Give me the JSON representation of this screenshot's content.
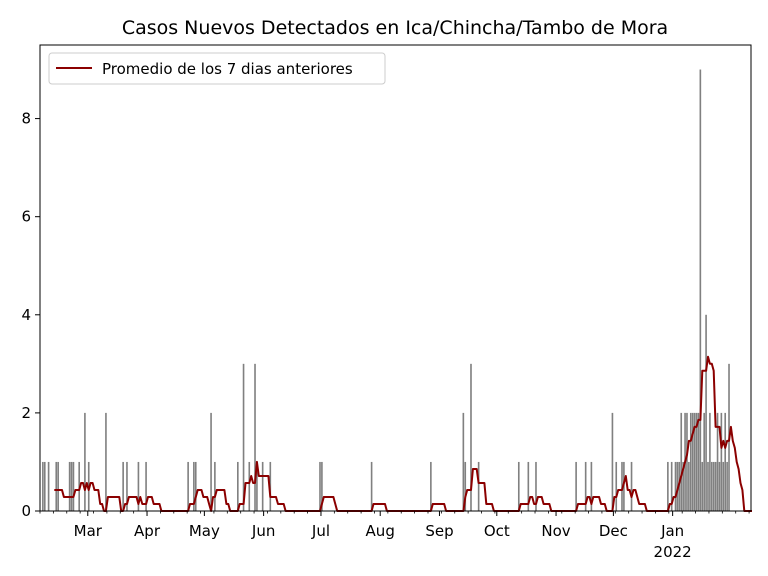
{
  "chart_data": {
    "type": "bar+line",
    "title": "Casos Nuevos Detectados en Ica/Chincha/Tambo de Mora",
    "xlabel": "",
    "ylabel": "",
    "x_start": "2021-02-04",
    "x_end": "2022-02-11",
    "ylim": [
      0,
      9.5
    ],
    "y_ticks": [
      0,
      2,
      4,
      6,
      8
    ],
    "x_ticks": [
      {
        "date": "2021-03-01",
        "label": "Mar",
        "sublabel": ""
      },
      {
        "date": "2021-04-01",
        "label": "Apr",
        "sublabel": ""
      },
      {
        "date": "2021-05-01",
        "label": "May",
        "sublabel": ""
      },
      {
        "date": "2021-06-01",
        "label": "Jun",
        "sublabel": ""
      },
      {
        "date": "2021-07-01",
        "label": "Jul",
        "sublabel": ""
      },
      {
        "date": "2021-08-01",
        "label": "Aug",
        "sublabel": ""
      },
      {
        "date": "2021-09-01",
        "label": "Sep",
        "sublabel": ""
      },
      {
        "date": "2021-10-01",
        "label": "Oct",
        "sublabel": ""
      },
      {
        "date": "2021-11-01",
        "label": "Nov",
        "sublabel": ""
      },
      {
        "date": "2021-12-01",
        "label": "Dec",
        "sublabel": ""
      },
      {
        "date": "2022-01-01",
        "label": "Jan",
        "sublabel": "2022"
      }
    ],
    "legend": {
      "position": "top-left",
      "entries": [
        "Promedio de los 7 dias anteriores"
      ]
    },
    "grid": false,
    "colors": {
      "bars": "#808080",
      "line": "#8b0000"
    },
    "daily_cases": [
      {
        "date": "2021-02-05",
        "value": 1
      },
      {
        "date": "2021-02-06",
        "value": 1
      },
      {
        "date": "2021-02-08",
        "value": 1
      },
      {
        "date": "2021-02-12",
        "value": 1
      },
      {
        "date": "2021-02-13",
        "value": 1
      },
      {
        "date": "2021-02-19",
        "value": 1
      },
      {
        "date": "2021-02-20",
        "value": 1
      },
      {
        "date": "2021-02-21",
        "value": 1
      },
      {
        "date": "2021-02-24",
        "value": 1
      },
      {
        "date": "2021-02-27",
        "value": 2
      },
      {
        "date": "2021-03-01",
        "value": 1
      },
      {
        "date": "2021-03-10",
        "value": 2
      },
      {
        "date": "2021-03-19",
        "value": 1
      },
      {
        "date": "2021-03-21",
        "value": 1
      },
      {
        "date": "2021-03-27",
        "value": 1
      },
      {
        "date": "2021-03-31",
        "value": 1
      },
      {
        "date": "2021-04-22",
        "value": 1
      },
      {
        "date": "2021-04-25",
        "value": 1
      },
      {
        "date": "2021-04-26",
        "value": 1
      },
      {
        "date": "2021-05-04",
        "value": 2
      },
      {
        "date": "2021-05-06",
        "value": 1
      },
      {
        "date": "2021-05-18",
        "value": 1
      },
      {
        "date": "2021-05-21",
        "value": 3
      },
      {
        "date": "2021-05-24",
        "value": 1
      },
      {
        "date": "2021-05-27",
        "value": 3
      },
      {
        "date": "2021-05-28",
        "value": 1
      },
      {
        "date": "2021-05-31",
        "value": 1
      },
      {
        "date": "2021-06-04",
        "value": 1
      },
      {
        "date": "2021-06-30",
        "value": 1
      },
      {
        "date": "2021-07-01",
        "value": 1
      },
      {
        "date": "2021-07-27",
        "value": 1
      },
      {
        "date": "2021-08-27",
        "value": 1
      },
      {
        "date": "2021-09-13",
        "value": 2
      },
      {
        "date": "2021-09-14",
        "value": 1
      },
      {
        "date": "2021-09-17",
        "value": 3
      },
      {
        "date": "2021-09-21",
        "value": 1
      },
      {
        "date": "2021-10-12",
        "value": 1
      },
      {
        "date": "2021-10-17",
        "value": 1
      },
      {
        "date": "2021-10-21",
        "value": 1
      },
      {
        "date": "2021-11-11",
        "value": 1
      },
      {
        "date": "2021-11-16",
        "value": 1
      },
      {
        "date": "2021-11-19",
        "value": 1
      },
      {
        "date": "2021-11-30",
        "value": 2
      },
      {
        "date": "2021-12-02",
        "value": 1
      },
      {
        "date": "2021-12-05",
        "value": 1
      },
      {
        "date": "2021-12-06",
        "value": 1
      },
      {
        "date": "2021-12-10",
        "value": 1
      },
      {
        "date": "2021-12-29",
        "value": 1
      },
      {
        "date": "2021-12-31",
        "value": 1
      },
      {
        "date": "2022-01-02",
        "value": 1
      },
      {
        "date": "2022-01-03",
        "value": 1
      },
      {
        "date": "2022-01-04",
        "value": 1
      },
      {
        "date": "2022-01-05",
        "value": 2
      },
      {
        "date": "2022-01-06",
        "value": 1
      },
      {
        "date": "2022-01-07",
        "value": 2
      },
      {
        "date": "2022-01-08",
        "value": 2
      },
      {
        "date": "2022-01-09",
        "value": 1
      },
      {
        "date": "2022-01-10",
        "value": 2
      },
      {
        "date": "2022-01-11",
        "value": 2
      },
      {
        "date": "2022-01-12",
        "value": 2
      },
      {
        "date": "2022-01-13",
        "value": 2
      },
      {
        "date": "2022-01-14",
        "value": 2
      },
      {
        "date": "2022-01-15",
        "value": 9
      },
      {
        "date": "2022-01-16",
        "value": 1
      },
      {
        "date": "2022-01-17",
        "value": 2
      },
      {
        "date": "2022-01-18",
        "value": 4
      },
      {
        "date": "2022-01-19",
        "value": 1
      },
      {
        "date": "2022-01-20",
        "value": 2
      },
      {
        "date": "2022-01-21",
        "value": 1
      },
      {
        "date": "2022-01-22",
        "value": 1
      },
      {
        "date": "2022-01-23",
        "value": 1
      },
      {
        "date": "2022-01-24",
        "value": 2
      },
      {
        "date": "2022-01-25",
        "value": 1
      },
      {
        "date": "2022-01-26",
        "value": 2
      },
      {
        "date": "2022-01-27",
        "value": 1
      },
      {
        "date": "2022-01-28",
        "value": 2
      },
      {
        "date": "2022-01-29",
        "value": 1
      },
      {
        "date": "2022-01-30",
        "value": 3
      }
    ]
  }
}
